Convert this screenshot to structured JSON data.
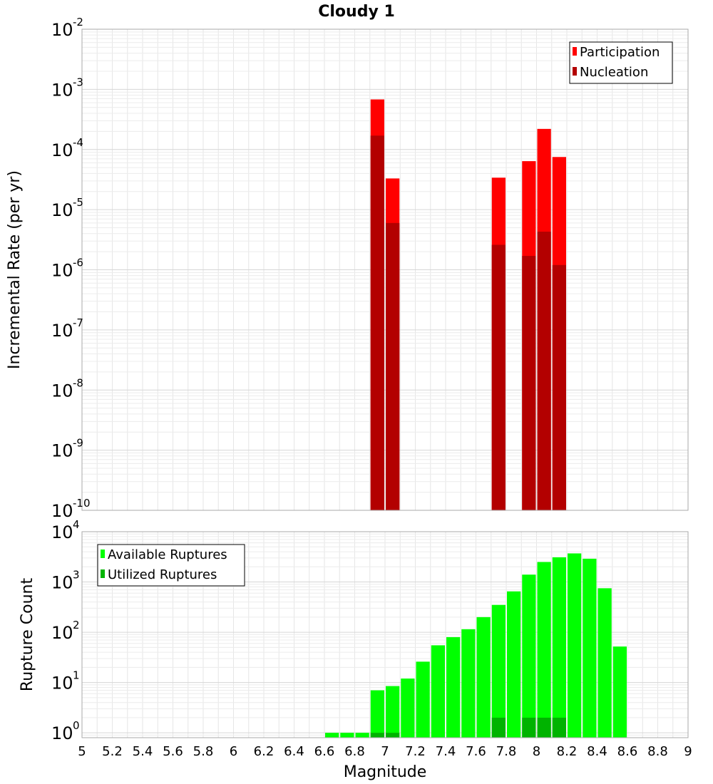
{
  "chart_data": [
    {
      "type": "bar",
      "id": "top",
      "title": "Cloudy 1",
      "ylabel": "Incremental Rate (per yr)",
      "xlabel": "",
      "yscale": "log",
      "ylim": [
        1e-10,
        0.01
      ],
      "xlim": [
        5.0,
        9.0
      ],
      "bin_width": 0.1,
      "grid": true,
      "legend_position": "top-right",
      "ytick_base": "10",
      "ytick_exponents": [
        "-10",
        "-9",
        "-8",
        "-7",
        "-6",
        "-5",
        "-4",
        "-3",
        "-2"
      ],
      "series": [
        {
          "name": "Participation",
          "color": "#ff0000",
          "points": [
            {
              "x": 6.95,
              "y": 0.00068
            },
            {
              "x": 7.05,
              "y": 3.3e-05
            },
            {
              "x": 7.75,
              "y": 3.4e-05
            },
            {
              "x": 7.95,
              "y": 6.4e-05
            },
            {
              "x": 8.05,
              "y": 0.00022
            },
            {
              "x": 8.15,
              "y": 7.5e-05
            }
          ]
        },
        {
          "name": "Nucleation",
          "color": "#b30000",
          "points": [
            {
              "x": 6.95,
              "y": 0.00017
            },
            {
              "x": 7.05,
              "y": 6e-06
            },
            {
              "x": 7.75,
              "y": 2.6e-06
            },
            {
              "x": 7.95,
              "y": 1.7e-06
            },
            {
              "x": 8.05,
              "y": 4.3e-06
            },
            {
              "x": 8.15,
              "y": 1.2e-06
            }
          ]
        }
      ]
    },
    {
      "type": "bar",
      "id": "bottom",
      "title": "",
      "ylabel": "Rupture Count",
      "xlabel": "Magnitude",
      "yscale": "log",
      "ylim": [
        0.8,
        10000
      ],
      "xlim": [
        5.0,
        9.0
      ],
      "bin_width": 0.1,
      "grid": true,
      "legend_position": "top-left",
      "ytick_base": "10",
      "ytick_exponents": [
        "0",
        "1",
        "2",
        "3",
        "4"
      ],
      "xticks": [
        "5",
        "5.2",
        "5.4",
        "5.6",
        "5.8",
        "6",
        "6.2",
        "6.4",
        "6.6",
        "6.8",
        "7",
        "7.2",
        "7.4",
        "7.6",
        "7.8",
        "8",
        "8.2",
        "8.4",
        "8.6",
        "8.8",
        "9"
      ],
      "series": [
        {
          "name": "Available Ruptures",
          "color": "#00ff00",
          "points": [
            {
              "x": 6.65,
              "y": 1
            },
            {
              "x": 6.75,
              "y": 1
            },
            {
              "x": 6.85,
              "y": 1
            },
            {
              "x": 6.95,
              "y": 7
            },
            {
              "x": 7.05,
              "y": 8.5
            },
            {
              "x": 7.15,
              "y": 12
            },
            {
              "x": 7.25,
              "y": 26
            },
            {
              "x": 7.35,
              "y": 55
            },
            {
              "x": 7.45,
              "y": 80
            },
            {
              "x": 7.55,
              "y": 115
            },
            {
              "x": 7.65,
              "y": 200
            },
            {
              "x": 7.75,
              "y": 350
            },
            {
              "x": 7.85,
              "y": 650
            },
            {
              "x": 7.95,
              "y": 1400
            },
            {
              "x": 8.05,
              "y": 2500
            },
            {
              "x": 8.15,
              "y": 3100
            },
            {
              "x": 8.25,
              "y": 3700
            },
            {
              "x": 8.35,
              "y": 2900
            },
            {
              "x": 8.45,
              "y": 750
            },
            {
              "x": 8.55,
              "y": 52
            }
          ]
        },
        {
          "name": "Utilized Ruptures",
          "color": "#00b300",
          "points": [
            {
              "x": 6.95,
              "y": 1
            },
            {
              "x": 7.05,
              "y": 1
            },
            {
              "x": 7.75,
              "y": 2
            },
            {
              "x": 7.95,
              "y": 2
            },
            {
              "x": 8.05,
              "y": 2
            },
            {
              "x": 8.15,
              "y": 2
            }
          ]
        }
      ]
    }
  ]
}
